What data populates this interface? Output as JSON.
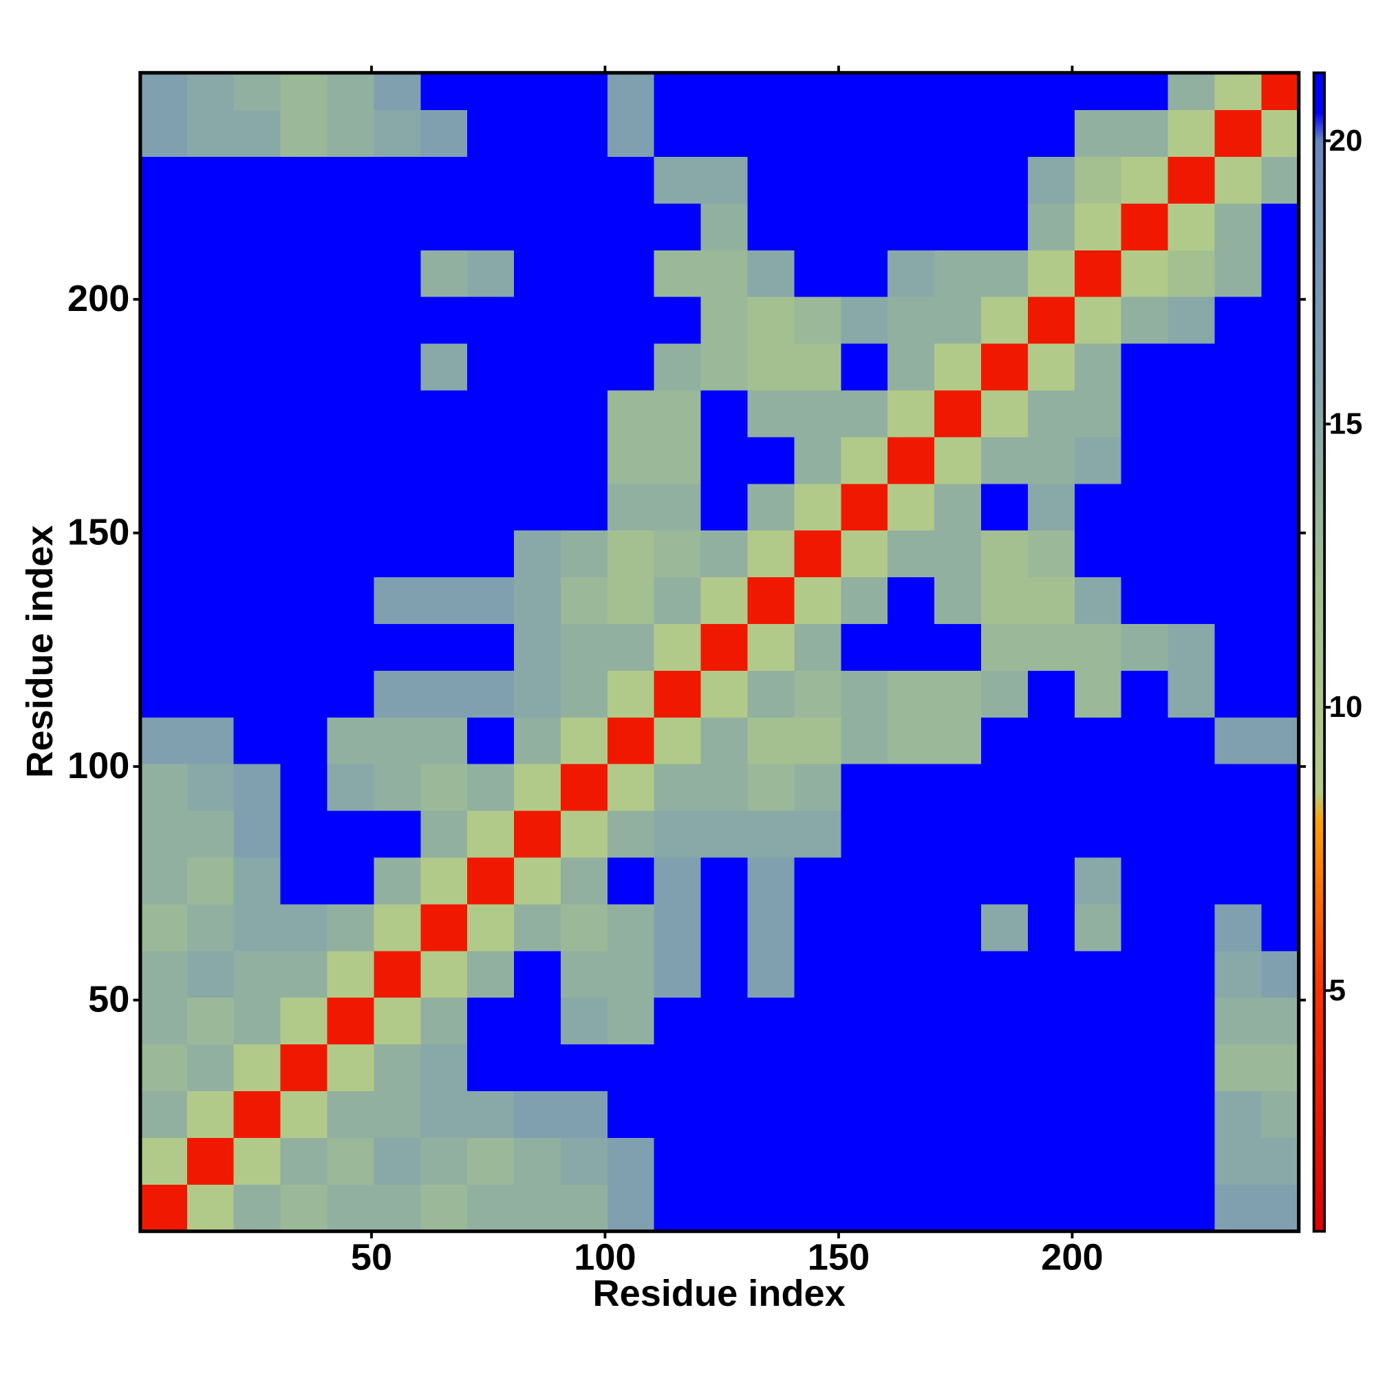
{
  "chart_data": {
    "type": "heatmap",
    "x_label": "Residue index",
    "y_label": "Residue index",
    "xlim": [
      0.5,
      248.5
    ],
    "ylim": [
      0.5,
      248.5
    ],
    "xticks": [
      50,
      100,
      150,
      200
    ],
    "yticks": [
      50,
      100,
      150,
      200
    ],
    "xbins": [
      0.5,
      10.5,
      20.5,
      30.5,
      40.5,
      50.5,
      60.5,
      70.5,
      80.5,
      90.5,
      100.5,
      110.5,
      120.5,
      130.5,
      140.5,
      150.5,
      160.5,
      170.5,
      180.5,
      190.5,
      200.5,
      210.5,
      220.5,
      230.5,
      240.5,
      248.5
    ],
    "ybins": [
      0.5,
      10.5,
      20.5,
      30.5,
      40.5,
      50.5,
      60.5,
      70.5,
      80.5,
      90.5,
      100.5,
      110.5,
      120.5,
      130.5,
      140.5,
      150.5,
      160.5,
      170.5,
      180.5,
      190.5,
      200.5,
      210.5,
      220.5,
      230.5,
      240.5,
      248.5
    ],
    "z": [
      [
        3,
        9,
        14,
        13,
        14,
        14,
        13,
        14,
        14,
        14,
        16,
        21,
        21,
        21,
        21,
        21,
        21,
        21,
        21,
        21,
        21,
        21,
        21,
        16,
        16
      ],
      [
        9,
        3,
        9,
        14,
        13,
        15,
        14,
        13,
        14,
        15,
        16,
        21,
        21,
        21,
        21,
        21,
        21,
        21,
        21,
        21,
        21,
        21,
        21,
        15,
        15
      ],
      [
        14,
        9,
        3,
        9,
        14,
        14,
        15,
        15,
        16,
        16,
        21,
        21,
        21,
        21,
        21,
        21,
        21,
        21,
        21,
        21,
        21,
        21,
        21,
        15,
        14
      ],
      [
        13,
        14,
        9,
        3,
        9,
        14,
        15,
        21,
        21,
        21,
        21,
        21,
        21,
        21,
        21,
        21,
        21,
        21,
        21,
        21,
        21,
        21,
        21,
        13,
        13
      ],
      [
        14,
        13,
        14,
        9,
        3,
        9,
        14,
        21,
        21,
        15,
        14,
        21,
        21,
        21,
        21,
        21,
        21,
        21,
        21,
        21,
        21,
        21,
        21,
        14,
        14
      ],
      [
        14,
        15,
        14,
        14,
        9,
        3,
        9,
        14,
        21,
        14,
        14,
        16,
        21,
        16,
        21,
        21,
        21,
        21,
        21,
        21,
        21,
        21,
        21,
        15,
        16
      ],
      [
        13,
        14,
        15,
        15,
        14,
        9,
        3,
        9,
        14,
        13,
        14,
        16,
        21,
        16,
        21,
        21,
        21,
        21,
        15,
        21,
        14,
        21,
        21,
        16,
        21
      ],
      [
        14,
        13,
        15,
        21,
        21,
        14,
        9,
        3,
        9,
        14,
        21,
        16,
        21,
        16,
        21,
        21,
        21,
        21,
        21,
        21,
        15,
        21,
        21,
        21,
        21
      ],
      [
        14,
        14,
        16,
        21,
        21,
        21,
        14,
        9,
        3,
        9,
        14,
        15,
        15,
        15,
        15,
        21,
        21,
        21,
        21,
        21,
        21,
        21,
        21,
        21,
        21
      ],
      [
        14,
        15,
        16,
        21,
        15,
        14,
        13,
        14,
        9,
        3,
        9,
        14,
        14,
        13,
        14,
        21,
        21,
        21,
        21,
        21,
        21,
        21,
        21,
        21,
        21
      ],
      [
        16,
        16,
        21,
        21,
        14,
        14,
        14,
        21,
        14,
        9,
        3,
        9,
        14,
        12,
        12,
        14,
        13,
        13,
        21,
        21,
        21,
        21,
        21,
        16,
        16
      ],
      [
        21,
        21,
        21,
        21,
        21,
        16,
        16,
        16,
        15,
        14,
        9,
        3,
        9,
        14,
        13,
        14,
        13,
        13,
        14,
        21,
        13,
        21,
        15,
        21,
        21
      ],
      [
        21,
        21,
        21,
        21,
        21,
        21,
        21,
        21,
        15,
        14,
        14,
        9,
        3,
        9,
        14,
        21,
        21,
        21,
        13,
        13,
        13,
        14,
        15,
        21,
        21
      ],
      [
        21,
        21,
        21,
        21,
        21,
        16,
        16,
        16,
        15,
        13,
        12,
        14,
        9,
        3,
        9,
        14,
        21,
        14,
        12,
        12,
        15,
        21,
        21,
        21,
        21
      ],
      [
        21,
        21,
        21,
        21,
        21,
        21,
        21,
        21,
        15,
        14,
        12,
        13,
        14,
        9,
        3,
        9,
        14,
        14,
        12,
        13,
        21,
        21,
        21,
        21,
        21
      ],
      [
        21,
        21,
        21,
        21,
        21,
        21,
        21,
        21,
        21,
        21,
        14,
        14,
        21,
        14,
        9,
        3,
        9,
        14,
        21,
        15,
        21,
        21,
        21,
        21,
        21
      ],
      [
        21,
        21,
        21,
        21,
        21,
        21,
        21,
        21,
        21,
        21,
        13,
        13,
        21,
        21,
        14,
        9,
        3,
        9,
        14,
        14,
        15,
        21,
        21,
        21,
        21
      ],
      [
        21,
        21,
        21,
        21,
        21,
        21,
        21,
        21,
        21,
        21,
        13,
        13,
        21,
        14,
        14,
        14,
        9,
        3,
        9,
        14,
        14,
        21,
        21,
        21,
        21
      ],
      [
        21,
        21,
        21,
        21,
        21,
        21,
        15,
        21,
        21,
        21,
        21,
        14,
        13,
        12,
        12,
        21,
        14,
        9,
        3,
        9,
        14,
        21,
        21,
        21,
        21
      ],
      [
        21,
        21,
        21,
        21,
        21,
        21,
        21,
        21,
        21,
        21,
        21,
        21,
        13,
        12,
        13,
        15,
        14,
        14,
        9,
        3,
        9,
        14,
        15,
        21,
        21
      ],
      [
        21,
        21,
        21,
        21,
        21,
        21,
        14,
        15,
        21,
        21,
        21,
        13,
        13,
        15,
        21,
        21,
        15,
        14,
        14,
        9,
        3,
        9,
        12,
        14,
        21
      ],
      [
        21,
        21,
        21,
        21,
        21,
        21,
        21,
        21,
        21,
        21,
        21,
        21,
        14,
        21,
        21,
        21,
        21,
        21,
        21,
        14,
        9,
        3,
        9,
        14,
        21
      ],
      [
        21,
        21,
        21,
        21,
        21,
        21,
        21,
        21,
        21,
        21,
        21,
        15,
        15,
        21,
        21,
        21,
        21,
        21,
        21,
        15,
        12,
        9,
        3,
        9,
        14
      ],
      [
        16,
        15,
        15,
        13,
        14,
        15,
        16,
        21,
        21,
        21,
        16,
        21,
        21,
        21,
        21,
        21,
        21,
        21,
        21,
        21,
        14,
        14,
        9,
        3,
        9
      ],
      [
        16,
        15,
        14,
        13,
        14,
        16,
        21,
        21,
        21,
        21,
        16,
        21,
        21,
        21,
        21,
        21,
        21,
        21,
        21,
        21,
        21,
        21,
        14,
        9,
        3
      ]
    ],
    "colorbar": {
      "lim": [
        0.75,
        21.2
      ],
      "ticks": [
        5,
        10,
        15,
        20
      ]
    },
    "colorscale": [
      {
        "value": 0.75,
        "color": "#e00000"
      },
      {
        "value": 5,
        "color": "#ff3000"
      },
      {
        "value": 8,
        "color": "#ffa000"
      },
      {
        "value": 8.5,
        "color": "#b4cc88"
      },
      {
        "value": 12,
        "color": "#a4c090"
      },
      {
        "value": 16,
        "color": "#80a0b0"
      },
      {
        "value": 20,
        "color": "#6888c0"
      },
      {
        "value": 20.5,
        "color": "#0000ff"
      },
      {
        "value": 21.2,
        "color": "#0000ff"
      }
    ]
  }
}
